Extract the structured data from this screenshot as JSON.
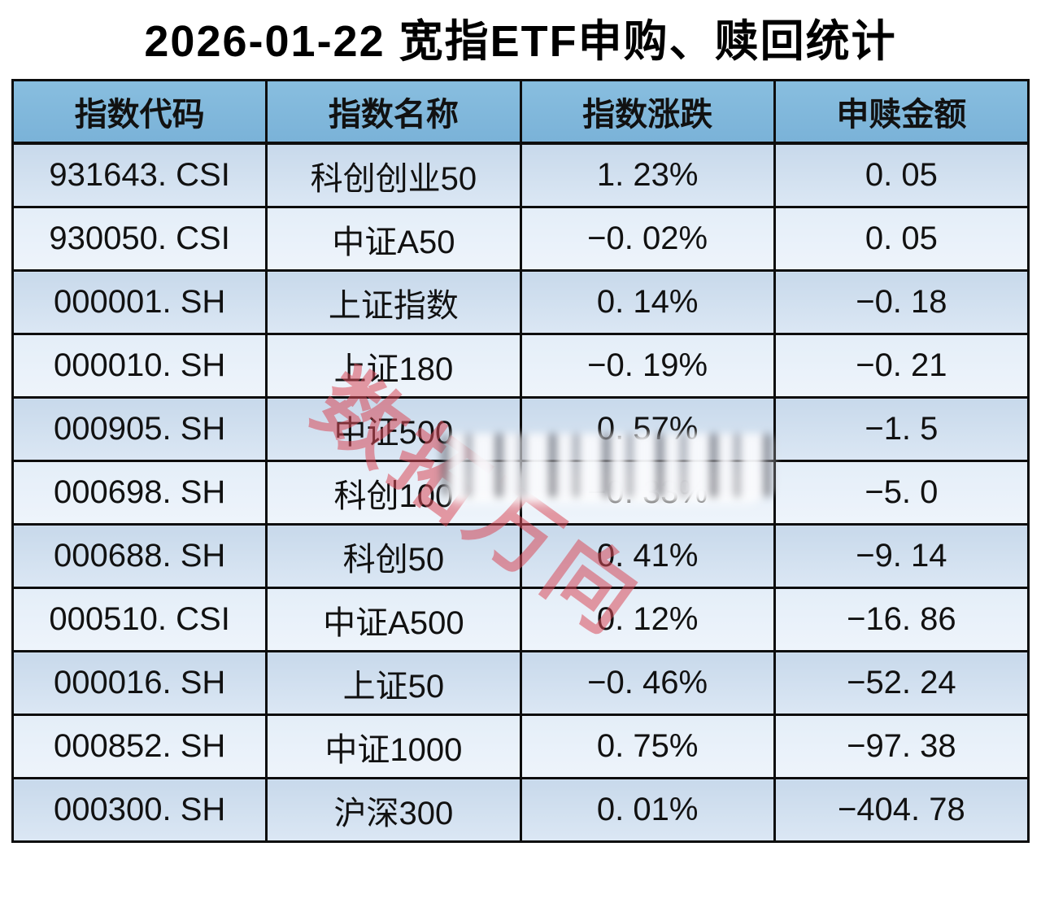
{
  "title": "2026-01-22 宽指ETF申购、赎回统计",
  "watermark": "数拓万向",
  "chart_data": {
    "type": "table",
    "title": "2026-01-22 宽指ETF申购、赎回统计",
    "columns": [
      "指数代码",
      "指数名称",
      "指数涨跌",
      "申赎金额"
    ],
    "rows": [
      [
        "931643. CSI",
        "科创创业50",
        "1. 23%",
        "0. 05"
      ],
      [
        "930050. CSI",
        "中证A50",
        "−0. 02%",
        "0. 05"
      ],
      [
        "000001. SH",
        "上证指数",
        "0. 14%",
        "−0. 18"
      ],
      [
        "000010. SH",
        "上证180",
        "−0. 19%",
        "−0. 21"
      ],
      [
        "000905. SH",
        "中证500",
        "0. 57%",
        "−1. 5"
      ],
      [
        "000698. SH",
        "科创100",
        "−0. 33%",
        "−5. 0"
      ],
      [
        "000688. SH",
        "科创50",
        "0. 41%",
        "−9. 14"
      ],
      [
        "000510. CSI",
        "中证A500",
        "0. 12%",
        "−16. 86"
      ],
      [
        "000016. SH",
        "上证50",
        "−0. 46%",
        "−52. 24"
      ],
      [
        "000852. SH",
        "中证1000",
        "0. 75%",
        "−97. 38"
      ],
      [
        "000300. SH",
        "沪深300",
        "0. 01%",
        "−404. 78"
      ]
    ]
  },
  "colors": {
    "header_bg": "#80b9dc",
    "row_dark_top": "#c8d9eb",
    "row_dark_bottom": "#dbe7f4",
    "row_light_top": "#e4eef8",
    "row_light_bottom": "#eef4fb",
    "border": "#0d0d0d",
    "text": "#111111",
    "watermark_red": "#d84b5a"
  }
}
